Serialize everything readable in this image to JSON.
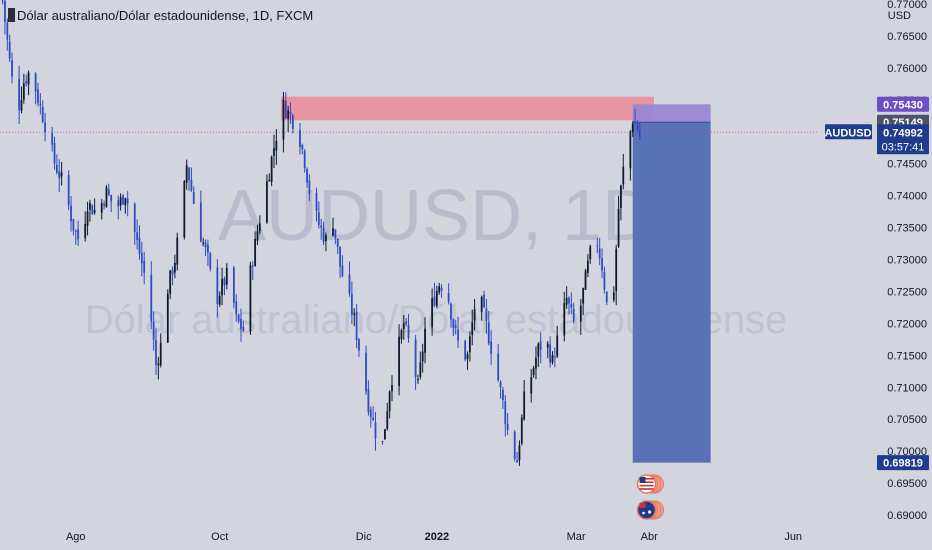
{
  "header": {
    "title": "Dólar australiano/Dólar estadounidense, 1D, FXCM"
  },
  "watermark": {
    "line1": "AUDUSD, 1D",
    "line2": "Dólar australiano/Dólar estadounidense"
  },
  "price_axis": {
    "currency": "USD",
    "symbol_badge": "AUDUSD",
    "countdown": "03:57:41"
  },
  "colors": {
    "background": "#d2d4de",
    "candle_up": "#0d1a2e",
    "candle_down": "#2d4cc4",
    "resistance_zone": "#e8919d",
    "short_target_zone": "#5570b5",
    "short_stop_zone": "#9a88d4",
    "current_price_label": "#1e3b8c",
    "stop_label": "#6b4fc4",
    "target_label": "#1e3b8c",
    "mid_label": "#4d5366"
  },
  "chart_data": {
    "type": "candlestick",
    "title": "Dólar australiano/Dólar estadounidense, 1D, FXCM",
    "instrument": "AUDUSD",
    "source": "FXCM",
    "timeframe": "1D",
    "ylim": [
      0.6895,
      0.7715
    ],
    "y_ticks": [
      0.77,
      0.765,
      0.76,
      0.755,
      0.75,
      0.745,
      0.74,
      0.735,
      0.73,
      0.725,
      0.72,
      0.715,
      0.71,
      0.705,
      0.7,
      0.695,
      0.69
    ],
    "x_ticks": [
      {
        "label": "Ago",
        "day": 31
      },
      {
        "label": "Oct",
        "day": 92
      },
      {
        "label": "Dic",
        "day": 153
      },
      {
        "label": "2022",
        "day": 184
      },
      {
        "label": "Mar",
        "day": 243
      },
      {
        "label": "Abr",
        "day": 274
      },
      {
        "label": "Jun",
        "day": 335
      }
    ],
    "current_price": 0.74992,
    "price_labels": [
      {
        "value": 0.7543,
        "text": "0.75430",
        "role": "stop"
      },
      {
        "value": 0.75149,
        "text": "0.75149",
        "role": "entry"
      },
      {
        "value": 0.74992,
        "text": "0.74992",
        "role": "current"
      },
      {
        "value": 0.69819,
        "text": "0.69819",
        "role": "target"
      }
    ],
    "resistance_zone": {
      "y_from": 0.7518,
      "y_to": 0.7555,
      "day_from": 118,
      "day_to": 276
    },
    "short_position": {
      "entry": 0.75149,
      "stop": 0.7543,
      "target": 0.69819,
      "day_from": 267,
      "day_to": 300
    },
    "price_path": [
      [
        0,
        0.7705
      ],
      [
        3,
        0.761
      ],
      [
        6,
        0.7525
      ],
      [
        9,
        0.7578
      ],
      [
        12,
        0.7598
      ],
      [
        15,
        0.7552
      ],
      [
        18,
        0.7512
      ],
      [
        22,
        0.7452
      ],
      [
        26,
        0.7415
      ],
      [
        30,
        0.7352
      ],
      [
        33,
        0.7323
      ],
      [
        36,
        0.7388
      ],
      [
        40,
        0.7372
      ],
      [
        44,
        0.7405
      ],
      [
        48,
        0.7378
      ],
      [
        52,
        0.7405
      ],
      [
        56,
        0.7342
      ],
      [
        60,
        0.7278
      ],
      [
        63,
        0.7205
      ],
      [
        65,
        0.7135
      ],
      [
        67,
        0.7165
      ],
      [
        70,
        0.7255
      ],
      [
        73,
        0.73
      ],
      [
        76,
        0.7375
      ],
      [
        78,
        0.7448
      ],
      [
        81,
        0.739
      ],
      [
        84,
        0.7338
      ],
      [
        87,
        0.73
      ],
      [
        90,
        0.7232
      ],
      [
        93,
        0.7258
      ],
      [
        96,
        0.7282
      ],
      [
        99,
        0.7205
      ],
      [
        102,
        0.719
      ],
      [
        105,
        0.728
      ],
      [
        108,
        0.7345
      ],
      [
        112,
        0.742
      ],
      [
        116,
        0.7495
      ],
      [
        119,
        0.754
      ],
      [
        122,
        0.7525
      ],
      [
        125,
        0.7505
      ],
      [
        128,
        0.7455
      ],
      [
        131,
        0.7385
      ],
      [
        134,
        0.7355
      ],
      [
        137,
        0.733
      ],
      [
        140,
        0.736
      ],
      [
        143,
        0.729
      ],
      [
        146,
        0.7248
      ],
      [
        149,
        0.7205
      ],
      [
        152,
        0.714
      ],
      [
        155,
        0.7075
      ],
      [
        158,
        0.703
      ],
      [
        161,
        0.701
      ],
      [
        164,
        0.71
      ],
      [
        167,
        0.715
      ],
      [
        170,
        0.72
      ],
      [
        173,
        0.7158
      ],
      [
        176,
        0.71
      ],
      [
        179,
        0.719
      ],
      [
        182,
        0.723
      ],
      [
        185,
        0.7262
      ],
      [
        188,
        0.7258
      ],
      [
        191,
        0.7198
      ],
      [
        194,
        0.7155
      ],
      [
        197,
        0.7148
      ],
      [
        200,
        0.7225
      ],
      [
        203,
        0.7228
      ],
      [
        206,
        0.718
      ],
      [
        209,
        0.713
      ],
      [
        212,
        0.7075
      ],
      [
        215,
        0.701
      ],
      [
        218,
        0.6985
      ],
      [
        221,
        0.708
      ],
      [
        224,
        0.7118
      ],
      [
        227,
        0.716
      ],
      [
        230,
        0.7175
      ],
      [
        233,
        0.714
      ],
      [
        236,
        0.719
      ],
      [
        239,
        0.7238
      ],
      [
        242,
        0.72
      ],
      [
        245,
        0.7228
      ],
      [
        248,
        0.729
      ],
      [
        251,
        0.7345
      ],
      [
        254,
        0.729
      ],
      [
        257,
        0.72
      ],
      [
        259,
        0.7255
      ],
      [
        261,
        0.738
      ],
      [
        263,
        0.744
      ],
      [
        265,
        0.748
      ],
      [
        267,
        0.752
      ],
      [
        269,
        0.7505
      ],
      [
        271,
        0.7478
      ],
      [
        272,
        0.7499
      ]
    ]
  },
  "events": [
    {
      "name": "us-flag-event",
      "day": 272,
      "row": 0
    },
    {
      "name": "au-flag-event",
      "day": 272,
      "row": 1
    }
  ]
}
